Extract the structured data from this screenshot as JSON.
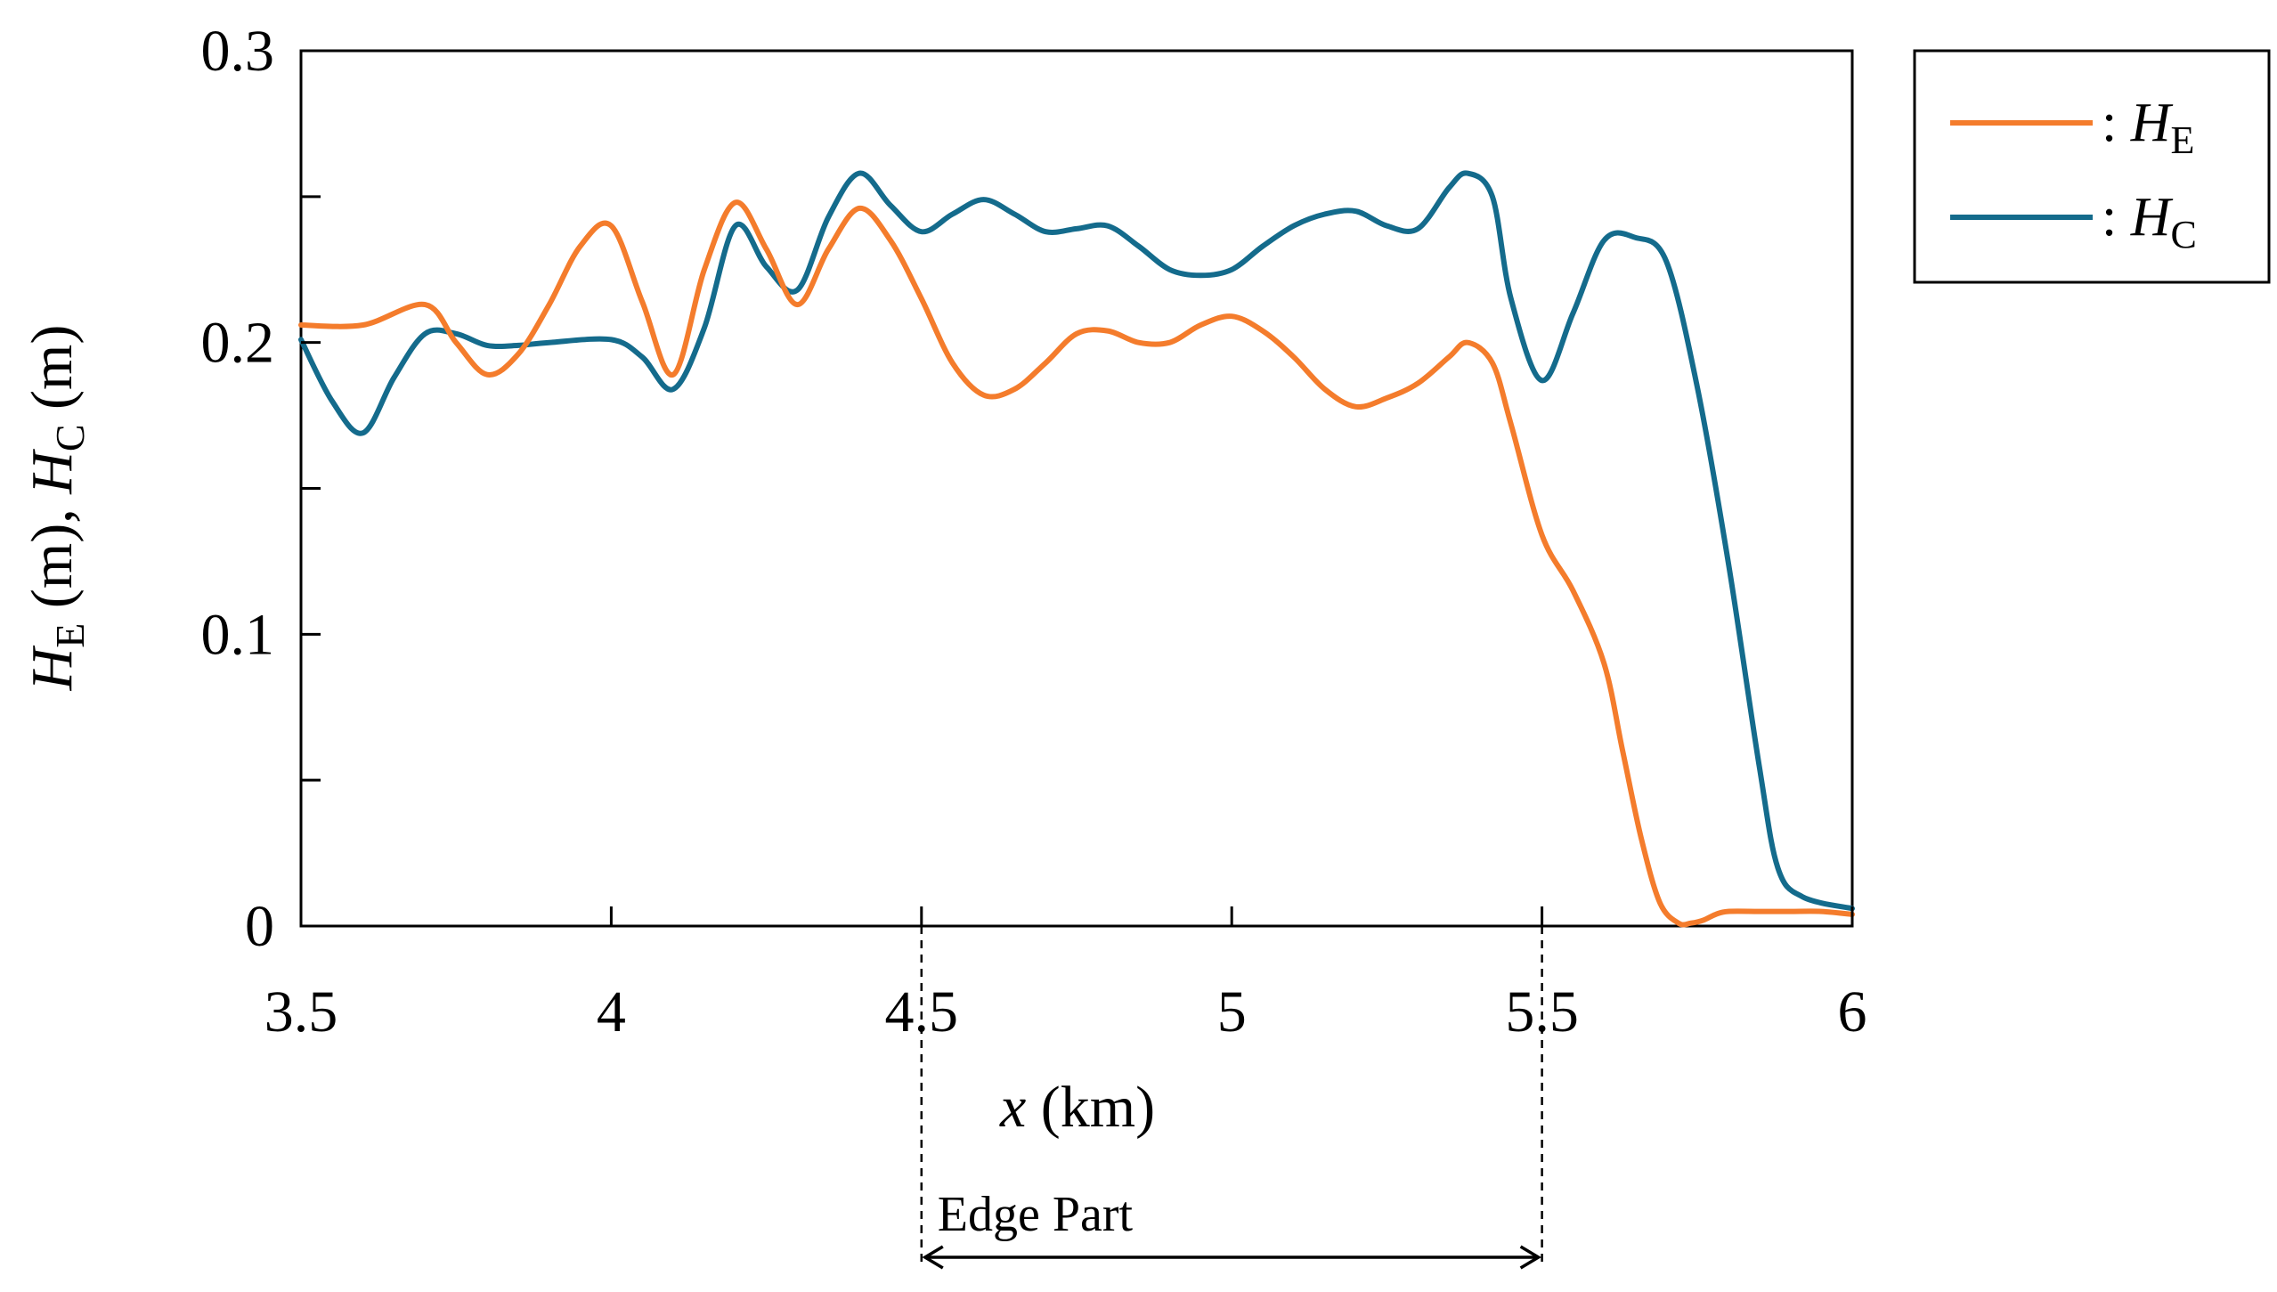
{
  "chart_data": {
    "type": "line",
    "xlabel": {
      "var": "x",
      "unit": " (km)"
    },
    "ylabel": [
      {
        "var": "H",
        "sub": "E",
        "unit": " (m), "
      },
      {
        "var": "H",
        "sub": "C",
        "unit": " (m)"
      }
    ],
    "xlim": [
      3.5,
      6
    ],
    "ylim": [
      0,
      0.3
    ],
    "xticks": [
      3.5,
      4,
      4.5,
      5,
      5.5,
      6
    ],
    "xtick_labels": [
      "3.5",
      "4",
      "4.5",
      "5",
      "5.5",
      "6"
    ],
    "yticks": [
      0,
      0.05,
      0.1,
      0.15,
      0.2,
      0.25,
      0.3
    ],
    "ytick_labels": [
      "0",
      "",
      "0.1",
      "",
      "0.2",
      "",
      "0.3"
    ],
    "grid": false,
    "legend_position": "top-right, outside plot",
    "series": [
      {
        "name": "H_E",
        "legend_label": {
          "prefix": ": ",
          "var": "H",
          "sub": "E"
        },
        "color": "#f47c2c",
        "x": [
          3.5,
          3.6,
          3.7,
          3.75,
          3.8,
          3.85,
          3.9,
          3.95,
          4.0,
          4.05,
          4.1,
          4.15,
          4.2,
          4.25,
          4.3,
          4.35,
          4.4,
          4.45,
          4.5,
          4.55,
          4.6,
          4.65,
          4.7,
          4.75,
          4.8,
          4.85,
          4.9,
          4.95,
          5.0,
          5.05,
          5.1,
          5.15,
          5.2,
          5.25,
          5.3,
          5.35,
          5.38,
          5.42,
          5.45,
          5.5,
          5.55,
          5.6,
          5.63,
          5.66,
          5.69,
          5.72,
          5.74,
          5.76,
          5.78,
          5.8,
          5.85,
          5.9,
          5.95,
          6.0
        ],
        "y": [
          0.206,
          0.206,
          0.213,
          0.2,
          0.189,
          0.196,
          0.213,
          0.233,
          0.24,
          0.214,
          0.189,
          0.225,
          0.248,
          0.232,
          0.213,
          0.232,
          0.246,
          0.235,
          0.215,
          0.193,
          0.182,
          0.184,
          0.193,
          0.203,
          0.204,
          0.2,
          0.2,
          0.206,
          0.209,
          0.204,
          0.195,
          0.184,
          0.178,
          0.181,
          0.186,
          0.195,
          0.2,
          0.193,
          0.172,
          0.134,
          0.115,
          0.09,
          0.06,
          0.03,
          0.008,
          0.001,
          0.001,
          0.002,
          0.004,
          0.005,
          0.005,
          0.005,
          0.005,
          0.004
        ]
      },
      {
        "name": "H_C",
        "legend_label": {
          "prefix": ": ",
          "var": "H",
          "sub": "C"
        },
        "color": "#146b8c",
        "x": [
          3.5,
          3.55,
          3.6,
          3.65,
          3.7,
          3.75,
          3.8,
          3.85,
          3.9,
          4.0,
          4.05,
          4.1,
          4.15,
          4.2,
          4.25,
          4.3,
          4.35,
          4.4,
          4.45,
          4.5,
          4.55,
          4.6,
          4.65,
          4.7,
          4.75,
          4.8,
          4.85,
          4.9,
          4.95,
          5.0,
          5.05,
          5.1,
          5.15,
          5.2,
          5.25,
          5.3,
          5.35,
          5.38,
          5.42,
          5.45,
          5.5,
          5.55,
          5.6,
          5.65,
          5.7,
          5.75,
          5.8,
          5.85,
          5.88,
          5.92,
          6.0
        ],
        "y": [
          0.201,
          0.18,
          0.169,
          0.188,
          0.203,
          0.203,
          0.199,
          0.199,
          0.2,
          0.201,
          0.195,
          0.184,
          0.205,
          0.24,
          0.226,
          0.218,
          0.243,
          0.258,
          0.247,
          0.238,
          0.244,
          0.249,
          0.244,
          0.238,
          0.239,
          0.24,
          0.233,
          0.225,
          0.223,
          0.225,
          0.233,
          0.24,
          0.244,
          0.245,
          0.24,
          0.239,
          0.253,
          0.258,
          0.25,
          0.215,
          0.187,
          0.21,
          0.235,
          0.236,
          0.228,
          0.185,
          0.125,
          0.055,
          0.02,
          0.01,
          0.006
        ]
      }
    ],
    "annotation": {
      "label": "Edge Part",
      "x_start": 4.5,
      "x_end": 5.5
    }
  }
}
